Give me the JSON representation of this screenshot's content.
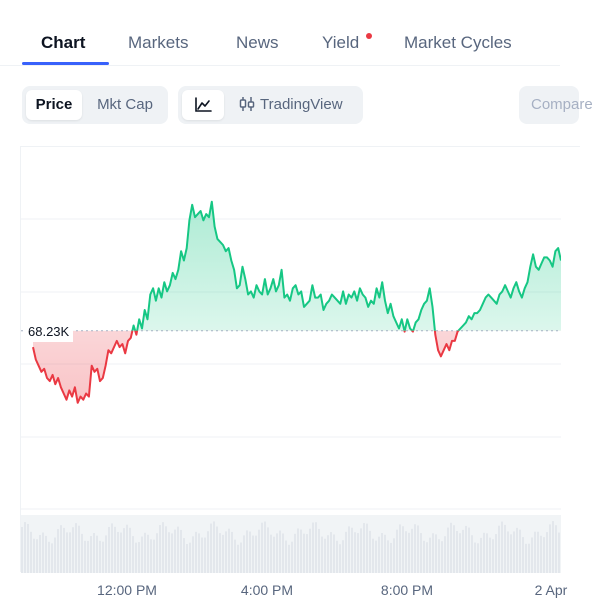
{
  "tabs": [
    {
      "label": "Chart",
      "active": true
    },
    {
      "label": "Markets",
      "active": false
    },
    {
      "label": "News",
      "active": false
    },
    {
      "label": "Yield",
      "active": false,
      "notification_dot": true
    },
    {
      "label": "Market Cycles",
      "active": false
    }
  ],
  "toolbar": {
    "price_label": "Price",
    "mktcap_label": "Mkt Cap",
    "line_icon": "line-chart-icon",
    "tradingview_icon": "candlestick-icon",
    "tradingview_label": "TradingView",
    "compare_placeholder": "Compare"
  },
  "colors": {
    "accent": "#3861fb",
    "up": "#16c784",
    "down": "#ea3943"
  },
  "chart_data": {
    "type": "area",
    "baseline_label": "68.23K",
    "baseline_value": 68.23,
    "x_tick_labels": [
      "12:00 PM",
      "4:00 PM",
      "8:00 PM",
      "2 Apr"
    ],
    "series": [
      {
        "values": [
          67.7,
          67.3,
          67.1,
          66.9,
          67.0,
          66.7,
          66.6,
          66.8,
          66.5,
          66.7,
          66.4,
          66.2,
          66.0,
          66.3,
          66.1,
          66.4,
          65.9,
          66.1,
          66.0,
          66.2,
          66.1,
          67.1,
          66.9,
          67.0,
          66.6,
          66.7,
          67.1,
          67.6,
          67.5,
          67.7,
          67.9,
          67.7,
          67.8,
          67.5,
          67.9,
          68.0,
          68.4,
          68.1,
          68.6,
          68.3,
          68.9,
          68.6,
          69.4,
          69.6,
          69.2,
          69.6,
          69.3,
          69.8,
          69.5,
          69.7,
          70.1,
          69.9,
          70.2,
          70.8,
          70.5,
          70.9,
          71.8,
          72.3,
          71.9,
          72.0,
          72.1,
          71.8,
          72.0,
          71.9,
          72.4,
          71.6,
          71.2,
          71.1,
          71.0,
          70.8,
          70.9,
          70.5,
          70.2,
          69.6,
          69.7,
          70.3,
          69.9,
          69.4,
          69.5,
          69.3,
          69.7,
          69.5,
          69.4,
          69.9,
          69.4,
          69.6,
          69.9,
          69.5,
          69.7,
          70.2,
          69.3,
          69.4,
          69.2,
          69.6,
          69.7,
          69.4,
          69.5,
          69.0,
          69.1,
          69.2,
          69.7,
          69.3,
          69.3,
          69.4,
          68.9,
          69.1,
          69.2,
          69.4,
          69.3,
          69.2,
          69.1,
          69.5,
          69.1,
          69.4,
          69.3,
          69.5,
          69.2,
          69.6,
          69.4,
          69.3,
          69.0,
          69.2,
          69.1,
          69.6,
          69.3,
          69.8,
          69.2,
          68.8,
          69.1,
          68.7,
          68.5,
          68.3,
          68.6,
          68.2,
          68.6,
          68.3,
          68.2,
          68.5,
          68.6,
          68.9,
          69.1,
          69.2,
          69.6,
          69.0,
          68.1,
          67.6,
          67.4,
          67.6,
          67.8,
          67.6,
          67.9,
          67.9,
          68.2,
          68.3,
          68.4,
          68.5,
          68.7,
          68.6,
          68.8,
          68.8,
          68.9,
          69.1,
          69.3,
          69.4,
          69.3,
          69.2,
          69.1,
          69.4,
          69.5,
          69.7,
          69.5,
          69.3,
          69.6,
          69.8,
          69.5,
          69.3,
          69.6,
          69.8,
          70.3,
          70.7,
          70.3,
          70.2,
          70.4,
          70.6,
          70.6,
          70.5,
          70.3,
          70.8,
          70.9,
          70.5
        ]
      }
    ],
    "grid": true
  }
}
